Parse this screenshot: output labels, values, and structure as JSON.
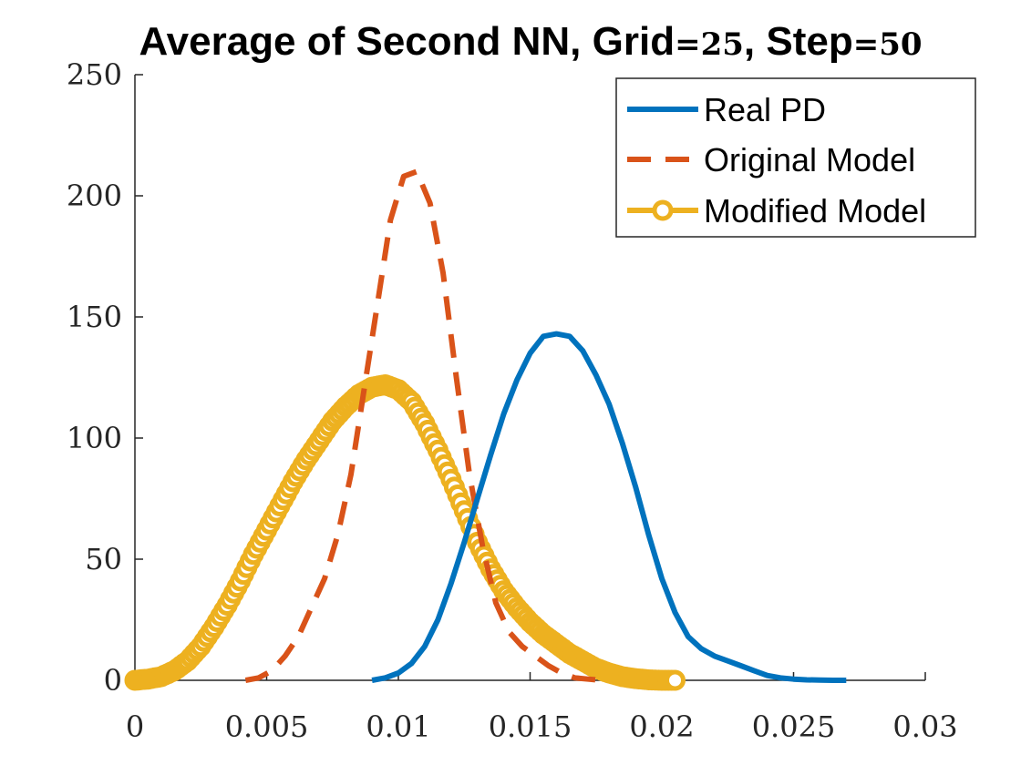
{
  "chart_data": {
    "type": "line",
    "title": {
      "prefix": "Average of Second NN, Grid",
      "grid_eq": "=25",
      "mid": ", Step",
      "step_eq": "=50"
    },
    "xlabel": "",
    "ylabel": "",
    "xlim": [
      0,
      0.03
    ],
    "ylim": [
      0,
      250
    ],
    "xticks": [
      0,
      0.005,
      0.01,
      0.015,
      0.02,
      0.025,
      0.03
    ],
    "xtick_labels": [
      "0",
      "0.005",
      "0.01",
      "0.015",
      "0.02",
      "0.025",
      "0.03"
    ],
    "yticks": [
      0,
      50,
      100,
      150,
      200,
      250
    ],
    "ytick_labels": [
      "0",
      "50",
      "100",
      "150",
      "200",
      "250"
    ],
    "grid": false,
    "legend_position": "top-right",
    "series": [
      {
        "name": "Real PD",
        "color": "#0072BD",
        "style": "solid",
        "x": [
          0.009,
          0.0095,
          0.01,
          0.0105,
          0.011,
          0.0115,
          0.012,
          0.0125,
          0.013,
          0.0135,
          0.014,
          0.0145,
          0.015,
          0.0155,
          0.016,
          0.0165,
          0.017,
          0.0175,
          0.018,
          0.0185,
          0.019,
          0.0195,
          0.02,
          0.0205,
          0.021,
          0.0215,
          0.022,
          0.0225,
          0.023,
          0.0235,
          0.024,
          0.0245,
          0.025,
          0.0255,
          0.026,
          0.0265,
          0.027
        ],
        "y": [
          0,
          1,
          3,
          7,
          14,
          25,
          40,
          57,
          75,
          93,
          110,
          124,
          135,
          142,
          143,
          142,
          136,
          126,
          114,
          98,
          80,
          60,
          42,
          28,
          18,
          13,
          10,
          8,
          6,
          4,
          2,
          1,
          0.5,
          0.2,
          0.1,
          0,
          0
        ]
      },
      {
        "name": "Original Model",
        "color": "#D95319",
        "style": "dashed",
        "x": [
          0.0042,
          0.0047,
          0.0052,
          0.0057,
          0.0062,
          0.0067,
          0.0072,
          0.0077,
          0.0082,
          0.0087,
          0.0092,
          0.0097,
          0.0102,
          0.0107,
          0.0112,
          0.0117,
          0.0122,
          0.0127,
          0.0132,
          0.0137,
          0.0142,
          0.0147,
          0.0152,
          0.0157,
          0.0162,
          0.0167,
          0.0172,
          0.0177
        ],
        "y": [
          0,
          1,
          4,
          10,
          18,
          30,
          42,
          60,
          85,
          120,
          155,
          190,
          208,
          210,
          197,
          168,
          125,
          85,
          55,
          32,
          20,
          14,
          10,
          6,
          3,
          1,
          0.5,
          0
        ]
      },
      {
        "name": "Modified Model",
        "color": "#EDB120",
        "style": "solid-with-circle-markers",
        "x": [
          0,
          0.0005,
          0.001,
          0.0015,
          0.002,
          0.0025,
          0.003,
          0.0035,
          0.004,
          0.0045,
          0.005,
          0.0055,
          0.006,
          0.0065,
          0.007,
          0.0075,
          0.008,
          0.0085,
          0.009,
          0.0095,
          0.01,
          0.0105,
          0.011,
          0.0115,
          0.012,
          0.0125,
          0.013,
          0.0135,
          0.014,
          0.0145,
          0.015,
          0.0155,
          0.016,
          0.0165,
          0.017,
          0.0175,
          0.018,
          0.0185,
          0.019,
          0.0195,
          0.02,
          0.0205
        ],
        "y": [
          0,
          0.5,
          1.5,
          4,
          8,
          14,
          22,
          31,
          41,
          52,
          62,
          72,
          82,
          91,
          99,
          107,
          113,
          118,
          121,
          122,
          120,
          115,
          106,
          95,
          83,
          70,
          57,
          46,
          37,
          30,
          24,
          19,
          15,
          11,
          8,
          5,
          3,
          1.5,
          0.7,
          0.2,
          0,
          0
        ]
      }
    ]
  }
}
